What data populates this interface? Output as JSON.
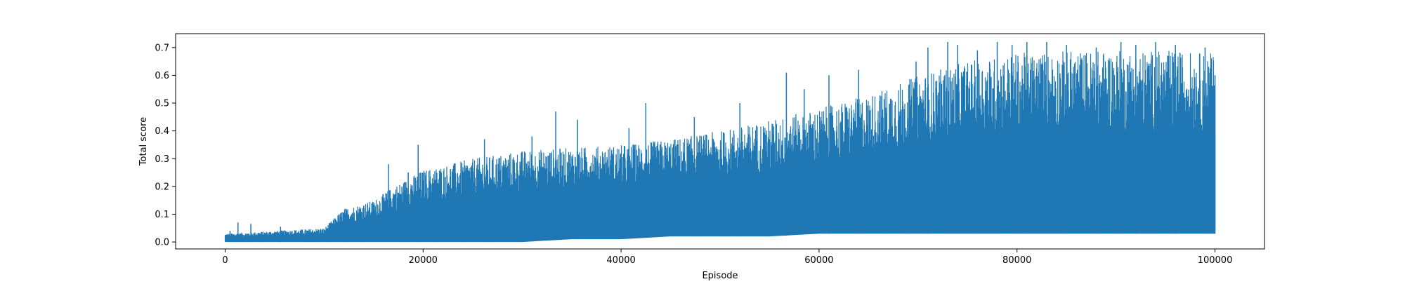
{
  "chart_data": {
    "type": "line",
    "title": "",
    "xlabel": "Episode",
    "ylabel": "Total score",
    "xlim": [
      -5000,
      105000
    ],
    "ylim": [
      -0.025,
      0.75
    ],
    "xticks": [
      0,
      20000,
      40000,
      60000,
      80000,
      100000
    ],
    "xtick_labels": [
      "0",
      "20000",
      "40000",
      "60000",
      "80000",
      "100000"
    ],
    "yticks": [
      0.0,
      0.1,
      0.2,
      0.3,
      0.4,
      0.5,
      0.6,
      0.7
    ],
    "ytick_labels": [
      "0.0",
      "0.1",
      "0.2",
      "0.3",
      "0.4",
      "0.5",
      "0.6",
      "0.7"
    ],
    "grid": false,
    "legend": "none",
    "colors": {
      "series": "#1f77b4",
      "axes": "#000000",
      "background": "#ffffff"
    },
    "series": [
      {
        "x": [
          0,
          5000,
          10000,
          12000,
          15000,
          17000,
          20000,
          25000,
          30000,
          35000,
          40000,
          45000,
          50000,
          55000,
          60000,
          65000,
          70000,
          75000,
          80000,
          85000,
          90000,
          95000,
          100000
        ],
        "y_max": [
          0.03,
          0.04,
          0.05,
          0.12,
          0.15,
          0.2,
          0.26,
          0.3,
          0.33,
          0.34,
          0.35,
          0.37,
          0.4,
          0.44,
          0.48,
          0.53,
          0.6,
          0.65,
          0.68,
          0.69,
          0.69,
          0.69,
          0.68
        ],
        "y_min": [
          0.0,
          0.0,
          0.0,
          0.0,
          0.0,
          0.0,
          0.0,
          0.0,
          0.0,
          0.01,
          0.01,
          0.02,
          0.02,
          0.02,
          0.03,
          0.03,
          0.03,
          0.03,
          0.03,
          0.03,
          0.03,
          0.03,
          0.03
        ],
        "peaks": [
          {
            "x": 500,
            "y": 0.04
          },
          {
            "x": 1300,
            "y": 0.07
          },
          {
            "x": 2600,
            "y": 0.065
          },
          {
            "x": 5600,
            "y": 0.055
          },
          {
            "x": 11500,
            "y": 0.1
          },
          {
            "x": 14000,
            "y": 0.13
          },
          {
            "x": 16500,
            "y": 0.28
          },
          {
            "x": 18500,
            "y": 0.25
          },
          {
            "x": 19500,
            "y": 0.35
          },
          {
            "x": 26200,
            "y": 0.37
          },
          {
            "x": 31000,
            "y": 0.38
          },
          {
            "x": 33400,
            "y": 0.47
          },
          {
            "x": 35600,
            "y": 0.44
          },
          {
            "x": 40800,
            "y": 0.41
          },
          {
            "x": 42500,
            "y": 0.5
          },
          {
            "x": 47400,
            "y": 0.45
          },
          {
            "x": 52000,
            "y": 0.5
          },
          {
            "x": 56700,
            "y": 0.61
          },
          {
            "x": 58500,
            "y": 0.55
          },
          {
            "x": 61000,
            "y": 0.6
          },
          {
            "x": 64000,
            "y": 0.62
          },
          {
            "x": 69800,
            "y": 0.65
          },
          {
            "x": 71000,
            "y": 0.7
          },
          {
            "x": 73000,
            "y": 0.72
          },
          {
            "x": 74000,
            "y": 0.71
          },
          {
            "x": 76000,
            "y": 0.69
          },
          {
            "x": 78000,
            "y": 0.72
          },
          {
            "x": 79500,
            "y": 0.71
          },
          {
            "x": 81000,
            "y": 0.72
          },
          {
            "x": 83000,
            "y": 0.72
          },
          {
            "x": 85000,
            "y": 0.71
          },
          {
            "x": 88000,
            "y": 0.7
          },
          {
            "x": 90500,
            "y": 0.72
          },
          {
            "x": 92000,
            "y": 0.71
          },
          {
            "x": 94000,
            "y": 0.72
          },
          {
            "x": 96000,
            "y": 0.71
          },
          {
            "x": 99000,
            "y": 0.7
          }
        ],
        "final_value": 0.6
      }
    ]
  }
}
